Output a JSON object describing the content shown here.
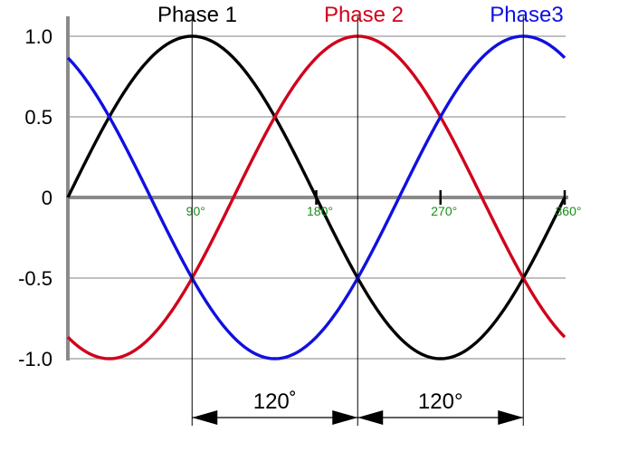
{
  "chart_data": {
    "type": "line",
    "title": "",
    "xlabel": "",
    "ylabel": "",
    "ylim": [
      -1.0,
      1.0
    ],
    "yticks": [
      "1.0",
      "0.5",
      "0",
      "-0.5",
      "-1.0"
    ],
    "ytick_values": [
      1.0,
      0.5,
      0,
      -0.5,
      -1.0
    ],
    "xlim_degrees": [
      0,
      390
    ],
    "xticks": [
      {
        "value": 90,
        "label": "90°"
      },
      {
        "value": 180,
        "label": "180°"
      },
      {
        "value": 270,
        "label": "270°"
      },
      {
        "value": 360,
        "label": "360°"
      }
    ],
    "grid": true,
    "legend_position": "top",
    "series": [
      {
        "name": "Phase 1",
        "color": "#000000",
        "phase_shift_degrees": 0,
        "amplitude": 1.0
      },
      {
        "name": "Phase 2",
        "color": "#d0021b",
        "phase_shift_degrees": -120,
        "amplitude": 1.0
      },
      {
        "name": "Phase3",
        "color": "#1010e0",
        "phase_shift_degrees": 120,
        "amplitude": 1.0
      }
    ],
    "annotations": {
      "phase_gap_left": "120˚",
      "phase_gap_right": "120°",
      "tick_label_color": "#1a8c1a"
    }
  }
}
